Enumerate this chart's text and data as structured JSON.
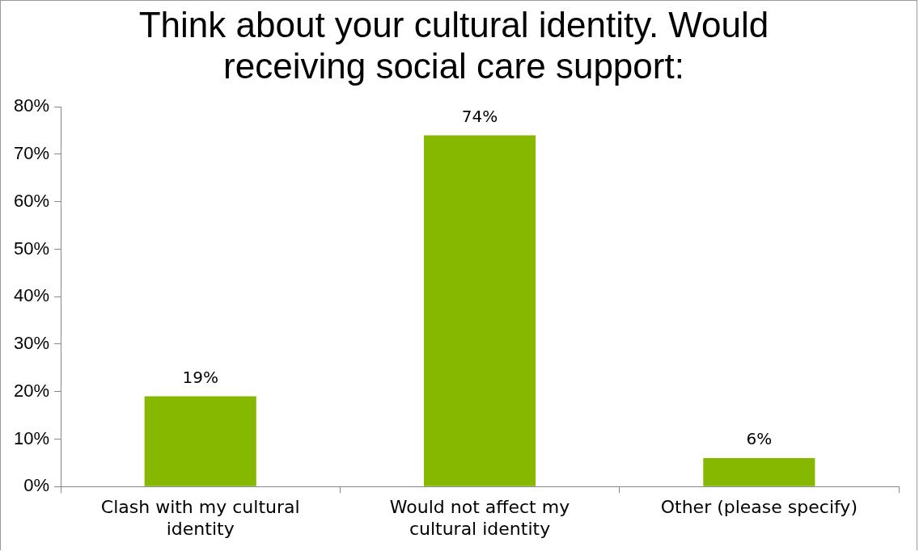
{
  "chart_data": {
    "type": "bar",
    "title": "Think about your cultural identity. Would receiving social care support:",
    "categories": [
      "Clash with my cultural identity",
      "Would not affect my cultural identity",
      "Other (please specify)"
    ],
    "values": [
      19,
      74,
      6
    ],
    "value_labels": [
      "19%",
      "74%",
      "6%"
    ],
    "color": "#86b800",
    "ylim": [
      0,
      80
    ],
    "yticks": [
      {
        "value": 0,
        "label": "0%"
      },
      {
        "value": 10,
        "label": "10%"
      },
      {
        "value": 20,
        "label": "20%"
      },
      {
        "value": 30,
        "label": "30%"
      },
      {
        "value": 40,
        "label": "40%"
      },
      {
        "value": 50,
        "label": "50%"
      },
      {
        "value": 60,
        "label": "60%"
      },
      {
        "value": 70,
        "label": "70%"
      },
      {
        "value": 80,
        "label": "80%"
      }
    ],
    "grid": false,
    "legend": false
  }
}
